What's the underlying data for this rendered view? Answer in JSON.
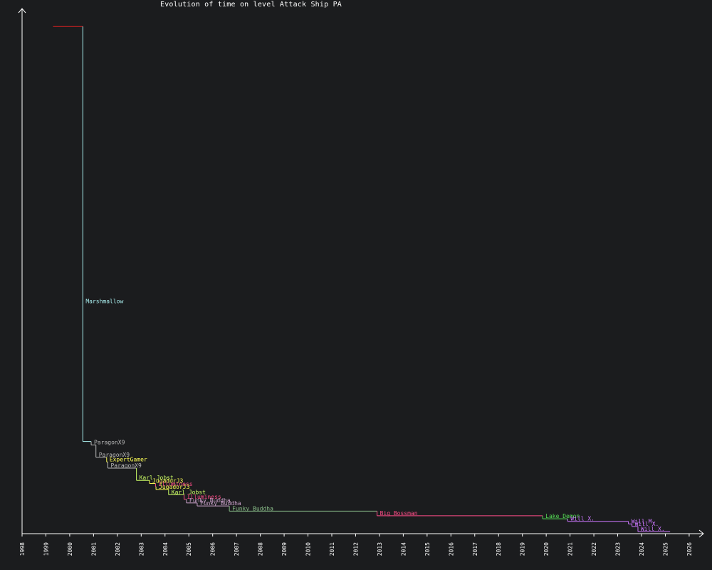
{
  "chart_data": {
    "type": "line",
    "title": "Evolution of time on level Attack Ship PA",
    "xlabel": "",
    "ylabel": "",
    "x_ticks": [
      "1998",
      "1999",
      "2000",
      "2001",
      "2002",
      "2003",
      "2004",
      "2005",
      "2006",
      "2007",
      "2008",
      "2009",
      "2010",
      "2011",
      "2012",
      "2013",
      "2014",
      "2015",
      "2016",
      "2017",
      "2018",
      "2019",
      "2020",
      "2021",
      "2022",
      "2023",
      "2024",
      "2025",
      "2026"
    ],
    "xlim": [
      1998,
      2026.6
    ],
    "ylim": [
      0,
      100
    ],
    "y_note": "relative time (no y tick labels printed)",
    "grid": false,
    "records": [
      {
        "player": "",
        "start": 1999.3,
        "end": 2000.55,
        "value": 99.0,
        "color": "#e02020"
      },
      {
        "player": "Marshmallow",
        "start": 2000.55,
        "end": 2000.9,
        "value": 18.0,
        "color": "#aaf0f0"
      },
      {
        "player": "ParagonX9",
        "start": 2000.9,
        "end": 2001.1,
        "value": 17.3,
        "color": "#b8b8b8"
      },
      {
        "player": "ParagonX9",
        "start": 2001.1,
        "end": 2001.55,
        "value": 14.9,
        "color": "#b8b8b8"
      },
      {
        "player": "ExpertGamer",
        "start": 2001.55,
        "end": 2001.6,
        "value": 14.0,
        "color": "#ffff55"
      },
      {
        "player": "ParagonX9",
        "start": 2001.6,
        "end": 2002.8,
        "value": 12.8,
        "color": "#b8b8b8"
      },
      {
        "player": "Karl Jobst",
        "start": 2002.8,
        "end": 2003.35,
        "value": 10.4,
        "color": "#ccff66"
      },
      {
        "player": "JugadorJ3",
        "start": 2003.35,
        "end": 2003.6,
        "value": 9.8,
        "color": "#ffff55"
      },
      {
        "player": "Illuminess",
        "start": 2003.6,
        "end": 2003.62,
        "value": 9.2,
        "color": "#ff4d88"
      },
      {
        "player": "JugadorJ3",
        "start": 2003.62,
        "end": 2004.15,
        "value": 8.6,
        "color": "#ffff55"
      },
      {
        "player": "Karl Jobst",
        "start": 2004.15,
        "end": 2004.8,
        "value": 7.6,
        "color": "#ccff66"
      },
      {
        "player": "Illuminess",
        "start": 2004.8,
        "end": 2004.9,
        "value": 6.7,
        "color": "#ff4d88"
      },
      {
        "player": "Funky Buddha",
        "start": 2004.9,
        "end": 2005.35,
        "value": 6.0,
        "color": "#c8a0c8"
      },
      {
        "player": "Funky Buddha",
        "start": 2005.35,
        "end": 2006.7,
        "value": 5.4,
        "color": "#c8a0c8"
      },
      {
        "player": "Funky Buddha",
        "start": 2006.7,
        "end": 2012.9,
        "value": 4.4,
        "color": "#88bb88"
      },
      {
        "player": "Big Bossman",
        "start": 2012.9,
        "end": 2019.85,
        "value": 3.5,
        "color": "#ff4d88"
      },
      {
        "player": "Lake Demon",
        "start": 2019.85,
        "end": 2020.9,
        "value": 2.9,
        "color": "#55dd55"
      },
      {
        "player": "Will X.",
        "start": 2020.9,
        "end": 2023.45,
        "value": 2.4,
        "color": "#cc77ff"
      },
      {
        "player": "Will M.",
        "start": 2023.45,
        "end": 2023.6,
        "value": 1.9,
        "color": "#cc77ff"
      },
      {
        "player": "Will X.",
        "start": 2023.6,
        "end": 2023.85,
        "value": 1.4,
        "color": "#cc77ff"
      },
      {
        "player": "Will X.",
        "start": 2023.85,
        "end": 2025.2,
        "value": 0.4,
        "color": "#cc77ff"
      }
    ]
  }
}
